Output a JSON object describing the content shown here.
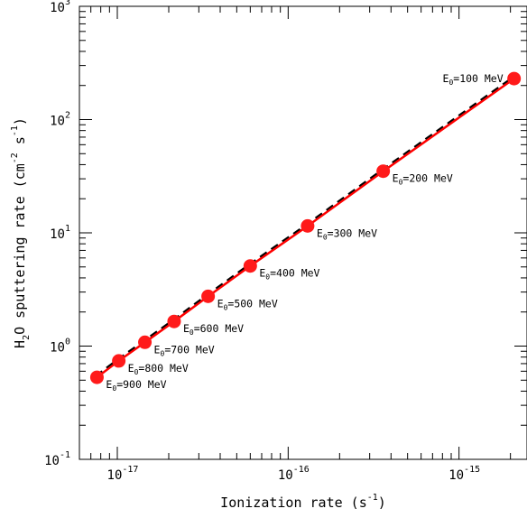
{
  "chart_data": {
    "type": "scatter",
    "title": "",
    "xlabel": "Ionization rate (s",
    "xlabel_exp": "-1",
    "xlabel_close": ")",
    "ylabel_h": "H",
    "ylabel_sub": "2",
    "ylabel_mid": "O sputtering rate (cm",
    "ylabel_exp": "-2",
    "ylabel_s": " s",
    "ylabel_exp2": "-1",
    "ylabel_close": ")",
    "x_scale": "log",
    "y_scale": "log",
    "xlim": [
      6e-18,
      2.5e-15
    ],
    "ylim": [
      0.1,
      1000
    ],
    "x_ticks": [
      {
        "base": "10",
        "exp": "-17",
        "value": 1e-17
      },
      {
        "base": "10",
        "exp": "-16",
        "value": 1e-16
      },
      {
        "base": "10",
        "exp": "-15",
        "value": 1e-15
      }
    ],
    "y_ticks": [
      {
        "base": "10",
        "exp": "-1",
        "value": 0.1
      },
      {
        "base": "10",
        "exp": "0",
        "value": 1
      },
      {
        "base": "10",
        "exp": "1",
        "value": 10
      },
      {
        "base": "10",
        "exp": "2",
        "value": 100
      },
      {
        "base": "10",
        "exp": "3",
        "value": 1000
      }
    ],
    "grid": false,
    "legend": "none",
    "marker_color": "#ff1a1a",
    "line_color": "#ff0000",
    "dash_color": "#000000",
    "points": [
      {
        "x": 2.1e-15,
        "y": 230,
        "label": "E",
        "label_sub": "0",
        "label_rest": "=100 MeV",
        "side": "left"
      },
      {
        "x": 3.6e-16,
        "y": 35,
        "label": "E",
        "label_sub": "0",
        "label_rest": "=200 MeV",
        "side": "right"
      },
      {
        "x": 1.3e-16,
        "y": 11.5,
        "label": "E",
        "label_sub": "0",
        "label_rest": "=300 MeV",
        "side": "right"
      },
      {
        "x": 6e-17,
        "y": 5.1,
        "label": "E",
        "label_sub": "0",
        "label_rest": "=400 MeV",
        "side": "right"
      },
      {
        "x": 3.4e-17,
        "y": 2.75,
        "label": "E",
        "label_sub": "0",
        "label_rest": "=500 MeV",
        "side": "right"
      },
      {
        "x": 2.15e-17,
        "y": 1.65,
        "label": "E",
        "label_sub": "0",
        "label_rest": "=600 MeV",
        "side": "right"
      },
      {
        "x": 1.45e-17,
        "y": 1.08,
        "label": "E",
        "label_sub": "0",
        "label_rest": "=700 MeV",
        "side": "right"
      },
      {
        "x": 1.02e-17,
        "y": 0.74,
        "label": "E",
        "label_sub": "0",
        "label_rest": "=800 MeV",
        "side": "right"
      },
      {
        "x": 7.6e-18,
        "y": 0.53,
        "label": "E",
        "label_sub": "0",
        "label_rest": "=900 MeV",
        "side": "right"
      }
    ]
  }
}
